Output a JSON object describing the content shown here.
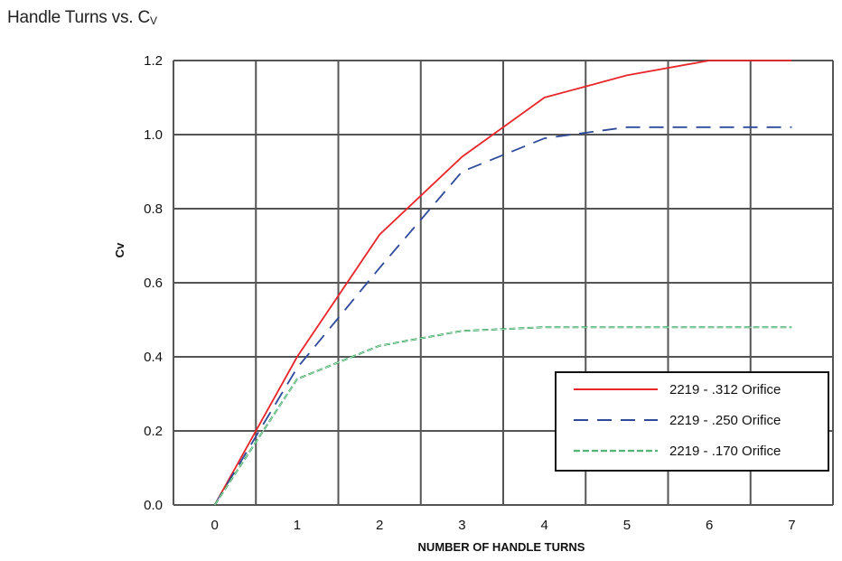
{
  "chart_data": {
    "type": "line",
    "title": "Handle Turns vs. C",
    "title_sub": "V",
    "xlabel": "NUMBER OF HANDLE TURNS",
    "ylabel": "Cv",
    "xlim": [
      -0.5,
      7.5
    ],
    "ylim": [
      0,
      1.2
    ],
    "x_ticks": [
      "0",
      "1",
      "2",
      "3",
      "4",
      "5",
      "6",
      "7"
    ],
    "y_ticks": [
      "0.0",
      "0.2",
      "0.4",
      "0.6",
      "0.8",
      "1.0",
      "1.2"
    ],
    "grid": true,
    "legend_position": "bottom-right",
    "series": [
      {
        "name": "2219 - .312 Orifice",
        "color": "#e8262a",
        "style": "solid",
        "x": [
          0,
          1,
          2,
          3,
          4,
          5,
          6,
          7
        ],
        "y": [
          0,
          0.4,
          0.73,
          0.94,
          1.1,
          1.16,
          1.2,
          1.2
        ]
      },
      {
        "name": "2219 - .250 Orifice",
        "color": "#2e4a9a",
        "style": "dashed",
        "x": [
          0,
          1,
          2,
          3,
          4,
          5,
          6,
          7
        ],
        "y": [
          0,
          0.37,
          0.64,
          0.9,
          0.99,
          1.02,
          1.02,
          1.02
        ]
      },
      {
        "name": "2219 - .170 Orifice",
        "color": "#1a9a48",
        "style": "dash-double",
        "x": [
          0,
          1,
          2,
          3,
          4,
          5,
          6,
          7
        ],
        "y": [
          0,
          0.34,
          0.43,
          0.47,
          0.48,
          0.48,
          0.48,
          0.48
        ]
      }
    ]
  }
}
